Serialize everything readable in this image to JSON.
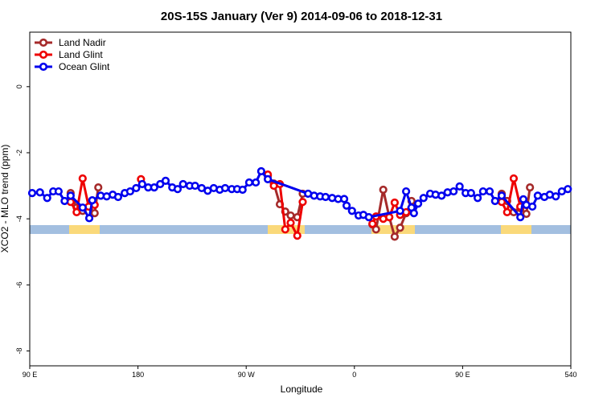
{
  "chart_data": {
    "type": "line",
    "title": "20S-15S January (Ver 9)   2014-09-06 to 2018-12-31",
    "x_label": "Longitude",
    "y_label": "XCO2 - MLO trend (ppm)",
    "xlim": [
      90,
      540
    ],
    "xticks": [
      {
        "value": 90,
        "label": "90 E"
      },
      180,
      {
        "value": 270,
        "label": "90 W"
      },
      {
        "value": 360,
        "label": "0"
      },
      {
        "value": 450,
        "label": "90 E"
      },
      540
    ],
    "ylim": [
      -8.45,
      1.65
    ],
    "yticks": [
      0,
      -2,
      -4,
      -6,
      -8
    ],
    "legend": "top-left",
    "series": [
      {
        "name": "Land Nadir",
        "color": "#a52a2a",
        "x": [
          124,
          129,
          134,
          139.5,
          144,
          147,
          200,
          288,
          293,
          298,
          302.5,
          307,
          312.5,
          317,
          350,
          375,
          378,
          384,
          389,
          393.5,
          398,
          403,
          407.5,
          450,
          482.5,
          487,
          492.5,
          498,
          503,
          506
        ],
        "values": [
          -3.22,
          -3.66,
          -3.76,
          -3.63,
          -3.83,
          -3.05,
          null,
          -2.7,
          -2.93,
          -3.56,
          -3.78,
          -3.9,
          -3.95,
          -3.24,
          null,
          -4.17,
          -4.32,
          -3.12,
          -3.95,
          -4.54,
          -4.27,
          -3.83,
          -3.46,
          null,
          -3.24,
          -3.46,
          -3.8,
          -3.68,
          -3.85,
          -3.05
        ]
      },
      {
        "name": "Land Glint",
        "color": "#ee0000",
        "x": [
          124,
          129,
          134,
          139,
          144,
          160,
          182.5,
          200,
          288,
          293,
          298,
          302.5,
          307,
          312.5,
          317,
          350,
          375,
          378,
          384,
          389,
          393.5,
          398,
          403,
          450,
          482.5,
          487,
          492.5,
          498,
          503
        ],
        "values": [
          -3.49,
          -3.8,
          -2.78,
          -3.63,
          -3.58,
          null,
          -2.8,
          null,
          -2.66,
          -3.0,
          -2.95,
          -4.32,
          -4.12,
          -4.51,
          -3.49,
          null,
          -4.15,
          -3.93,
          -4.0,
          -3.95,
          -3.51,
          -3.88,
          -3.8,
          null,
          -3.49,
          -3.8,
          -2.78,
          -3.63,
          -3.58
        ]
      },
      {
        "name": "Ocean Glint",
        "color": "#0000ee",
        "x": [
          92,
          98.5,
          104.5,
          109.5,
          114,
          119,
          124,
          134,
          139.5,
          142,
          149,
          154,
          159,
          163.5,
          169,
          173.5,
          178.5,
          183.5,
          188.5,
          193.5,
          198.5,
          203,
          208.5,
          213,
          217.5,
          223,
          227.5,
          233,
          238,
          243,
          248,
          252.5,
          258,
          262.5,
          267,
          272.5,
          278,
          282.5,
          288,
          321.5,
          326.5,
          331.5,
          336,
          341.5,
          346.5,
          351.5,
          353.5,
          358,
          363.5,
          367.5,
          372,
          398,
          403,
          407.5,
          409.5,
          413,
          417.5,
          423,
          427.5,
          432.5,
          437.5,
          442.5,
          447.5,
          452.5,
          457,
          462.5,
          467,
          472.5,
          477,
          482.5,
          498,
          500.5,
          503,
          508,
          512.5,
          518,
          522.5,
          527.5,
          532.5,
          537.5
        ],
        "values": [
          -3.22,
          -3.2,
          -3.37,
          -3.17,
          -3.17,
          -3.46,
          -3.3,
          -3.66,
          -3.98,
          -3.44,
          -3.3,
          -3.32,
          -3.27,
          -3.34,
          -3.22,
          -3.17,
          -3.07,
          -2.95,
          -3.05,
          -3.05,
          -2.95,
          -2.85,
          -3.05,
          -3.1,
          -2.95,
          -3.0,
          -3.0,
          -3.07,
          -3.15,
          -3.07,
          -3.12,
          -3.07,
          -3.1,
          -3.1,
          -3.12,
          -2.9,
          -2.9,
          -2.56,
          -2.8,
          -3.24,
          -3.3,
          -3.32,
          -3.34,
          -3.37,
          -3.4,
          -3.4,
          -3.6,
          -3.76,
          -3.9,
          -3.88,
          -3.95,
          -3.76,
          -3.17,
          -3.66,
          -3.83,
          -3.54,
          -3.37,
          -3.24,
          -3.27,
          -3.3,
          -3.2,
          -3.17,
          -3.02,
          -3.22,
          -3.22,
          -3.37,
          -3.17,
          -3.17,
          -3.46,
          -3.3,
          -3.95,
          -3.41,
          -3.58,
          -3.63,
          -3.3,
          -3.34,
          -3.27,
          -3.32,
          -3.17,
          -3.1
        ]
      }
    ]
  }
}
